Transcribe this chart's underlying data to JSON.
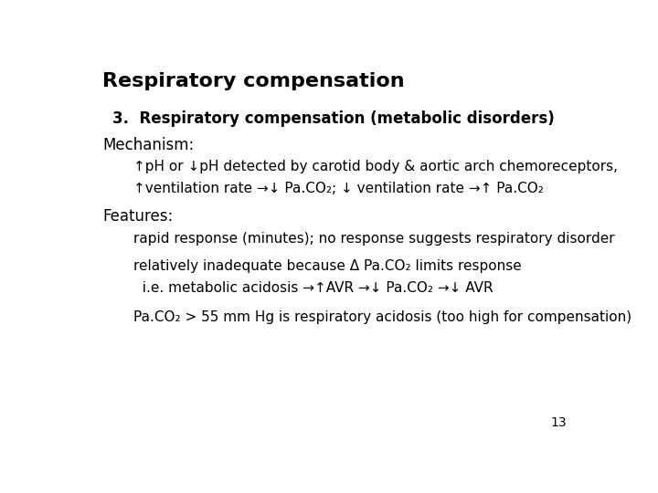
{
  "background_color": "#ffffff",
  "title": "Respiratory compensation",
  "title_fontsize": 16,
  "page_number": "13",
  "UP": "↑",
  "DOWN": "↓",
  "ARROW": "→",
  "DELTA": "Δ",
  "CO2": "Pa.CO₂"
}
